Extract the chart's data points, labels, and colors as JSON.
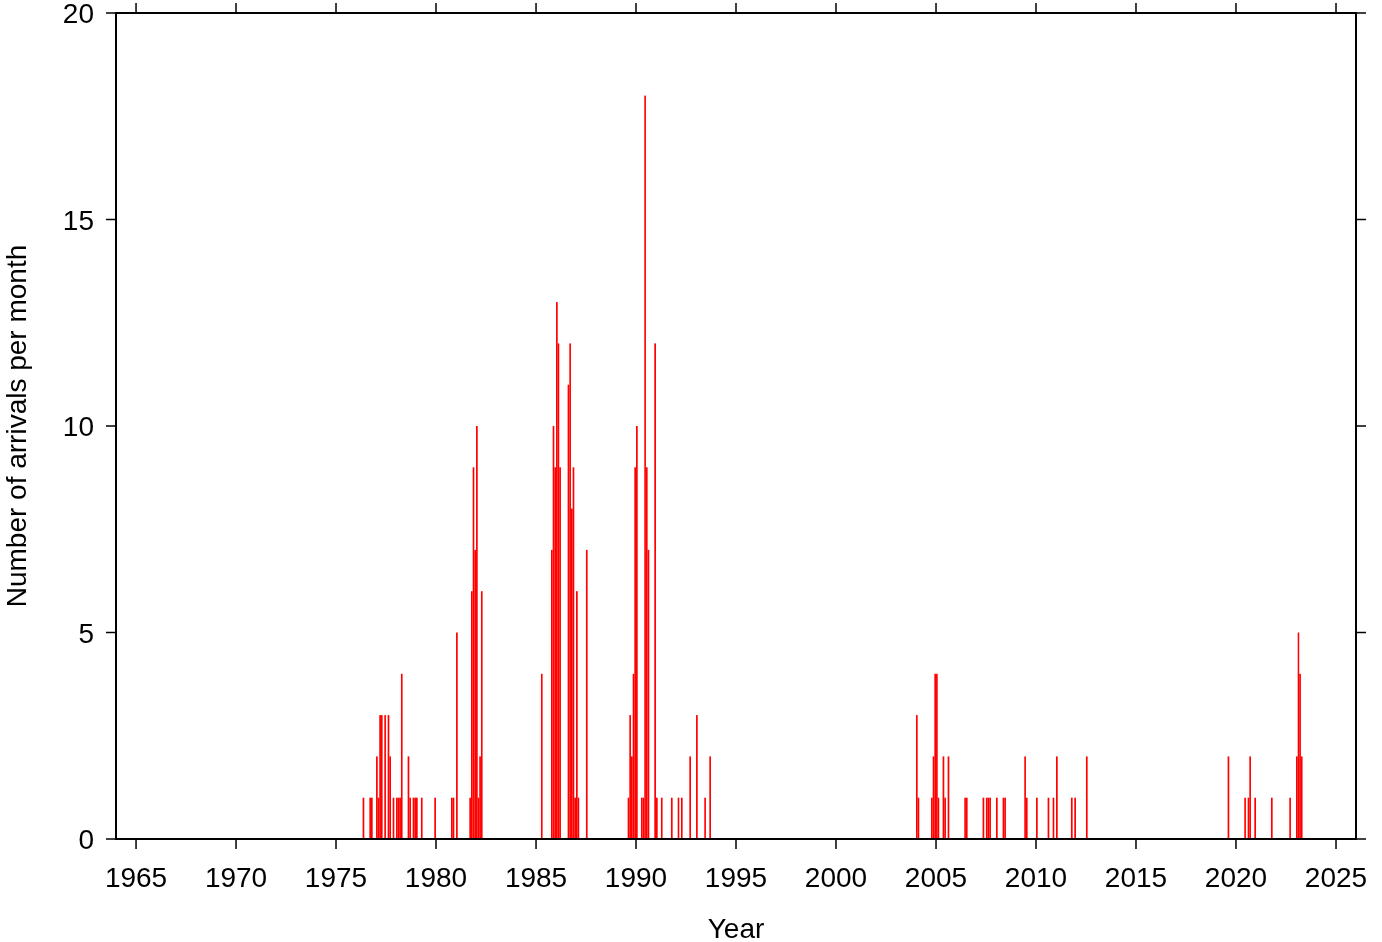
{
  "chart_data": {
    "type": "bar",
    "xlabel": "Year",
    "ylabel": "Number of arrivals per month",
    "color": "#ff0000",
    "xlim": [
      "1964",
      "2026"
    ],
    "xticks": [
      "1965",
      "1970",
      "1975",
      "1980",
      "1985",
      "1990",
      "1995",
      "2000",
      "2005",
      "2010",
      "2015",
      "2020",
      "2025"
    ],
    "ylim": [
      0,
      20
    ],
    "yticks": [
      0,
      5,
      10,
      15,
      20
    ],
    "x": [
      "1976-05",
      "1976-09",
      "1976-10",
      "1977-01",
      "1977-02",
      "1977-03",
      "1977-04",
      "1977-06",
      "1977-08",
      "1977-09",
      "1977-11",
      "1978-01",
      "1978-02",
      "1978-03",
      "1978-04",
      "1978-08",
      "1978-09",
      "1978-11",
      "1978-12",
      "1979-01",
      "1979-04",
      "1979-12",
      "1980-10",
      "1980-11",
      "1981-01",
      "1981-09",
      "1981-10",
      "1981-11",
      "1981-12",
      "1982-01",
      "1982-02",
      "1982-03",
      "1982-04",
      "1985-04",
      "1985-10",
      "1985-11",
      "1985-12",
      "1986-01",
      "1986-02",
      "1986-03",
      "1986-08",
      "1986-09",
      "1986-10",
      "1986-11",
      "1986-12",
      "1987-01",
      "1987-02",
      "1987-07",
      "1989-08",
      "1989-09",
      "1989-10",
      "1989-11",
      "1989-12",
      "1990-01",
      "1990-04",
      "1990-05",
      "1990-06",
      "1990-07",
      "1990-08",
      "1990-12",
      "1991-01",
      "1991-04",
      "1991-10",
      "1992-02",
      "1992-04",
      "1992-09",
      "1993-01",
      "1993-06",
      "1993-09",
      "2004-01",
      "2004-02",
      "2004-10",
      "2004-11",
      "2004-12",
      "2005-01",
      "2005-02",
      "2005-05",
      "2005-06",
      "2005-08",
      "2006-06",
      "2006-07",
      "2007-05",
      "2007-07",
      "2007-08",
      "2007-09",
      "2008-01",
      "2008-05",
      "2008-06",
      "2009-06",
      "2009-07",
      "2010-01",
      "2010-08",
      "2010-11",
      "2011-01",
      "2011-10",
      "2011-12",
      "2012-07",
      "2019-08",
      "2020-06",
      "2020-08",
      "2020-09",
      "2020-12",
      "2021-10",
      "2022-09",
      "2023-01",
      "2023-02",
      "2023-03",
      "2023-04"
    ],
    "values": [
      1,
      1,
      1,
      2,
      1,
      3,
      3,
      3,
      3,
      2,
      1,
      1,
      1,
      1,
      4,
      2,
      1,
      1,
      1,
      1,
      1,
      1,
      1,
      1,
      5,
      1,
      6,
      9,
      7,
      10,
      1,
      2,
      6,
      4,
      7,
      10,
      9,
      13,
      12,
      9,
      11,
      12,
      8,
      9,
      1,
      6,
      1,
      7,
      1,
      3,
      2,
      4,
      9,
      10,
      1,
      1,
      18,
      9,
      7,
      12,
      1,
      1,
      1,
      1,
      1,
      2,
      3,
      1,
      2,
      3,
      1,
      1,
      2,
      4,
      4,
      1,
      2,
      1,
      2,
      1,
      1,
      1,
      1,
      1,
      1,
      1,
      1,
      1,
      2,
      1,
      1,
      1,
      1,
      2,
      1,
      1,
      2,
      2,
      1,
      1,
      2,
      1,
      1,
      1,
      2,
      5,
      4,
      2
    ]
  }
}
